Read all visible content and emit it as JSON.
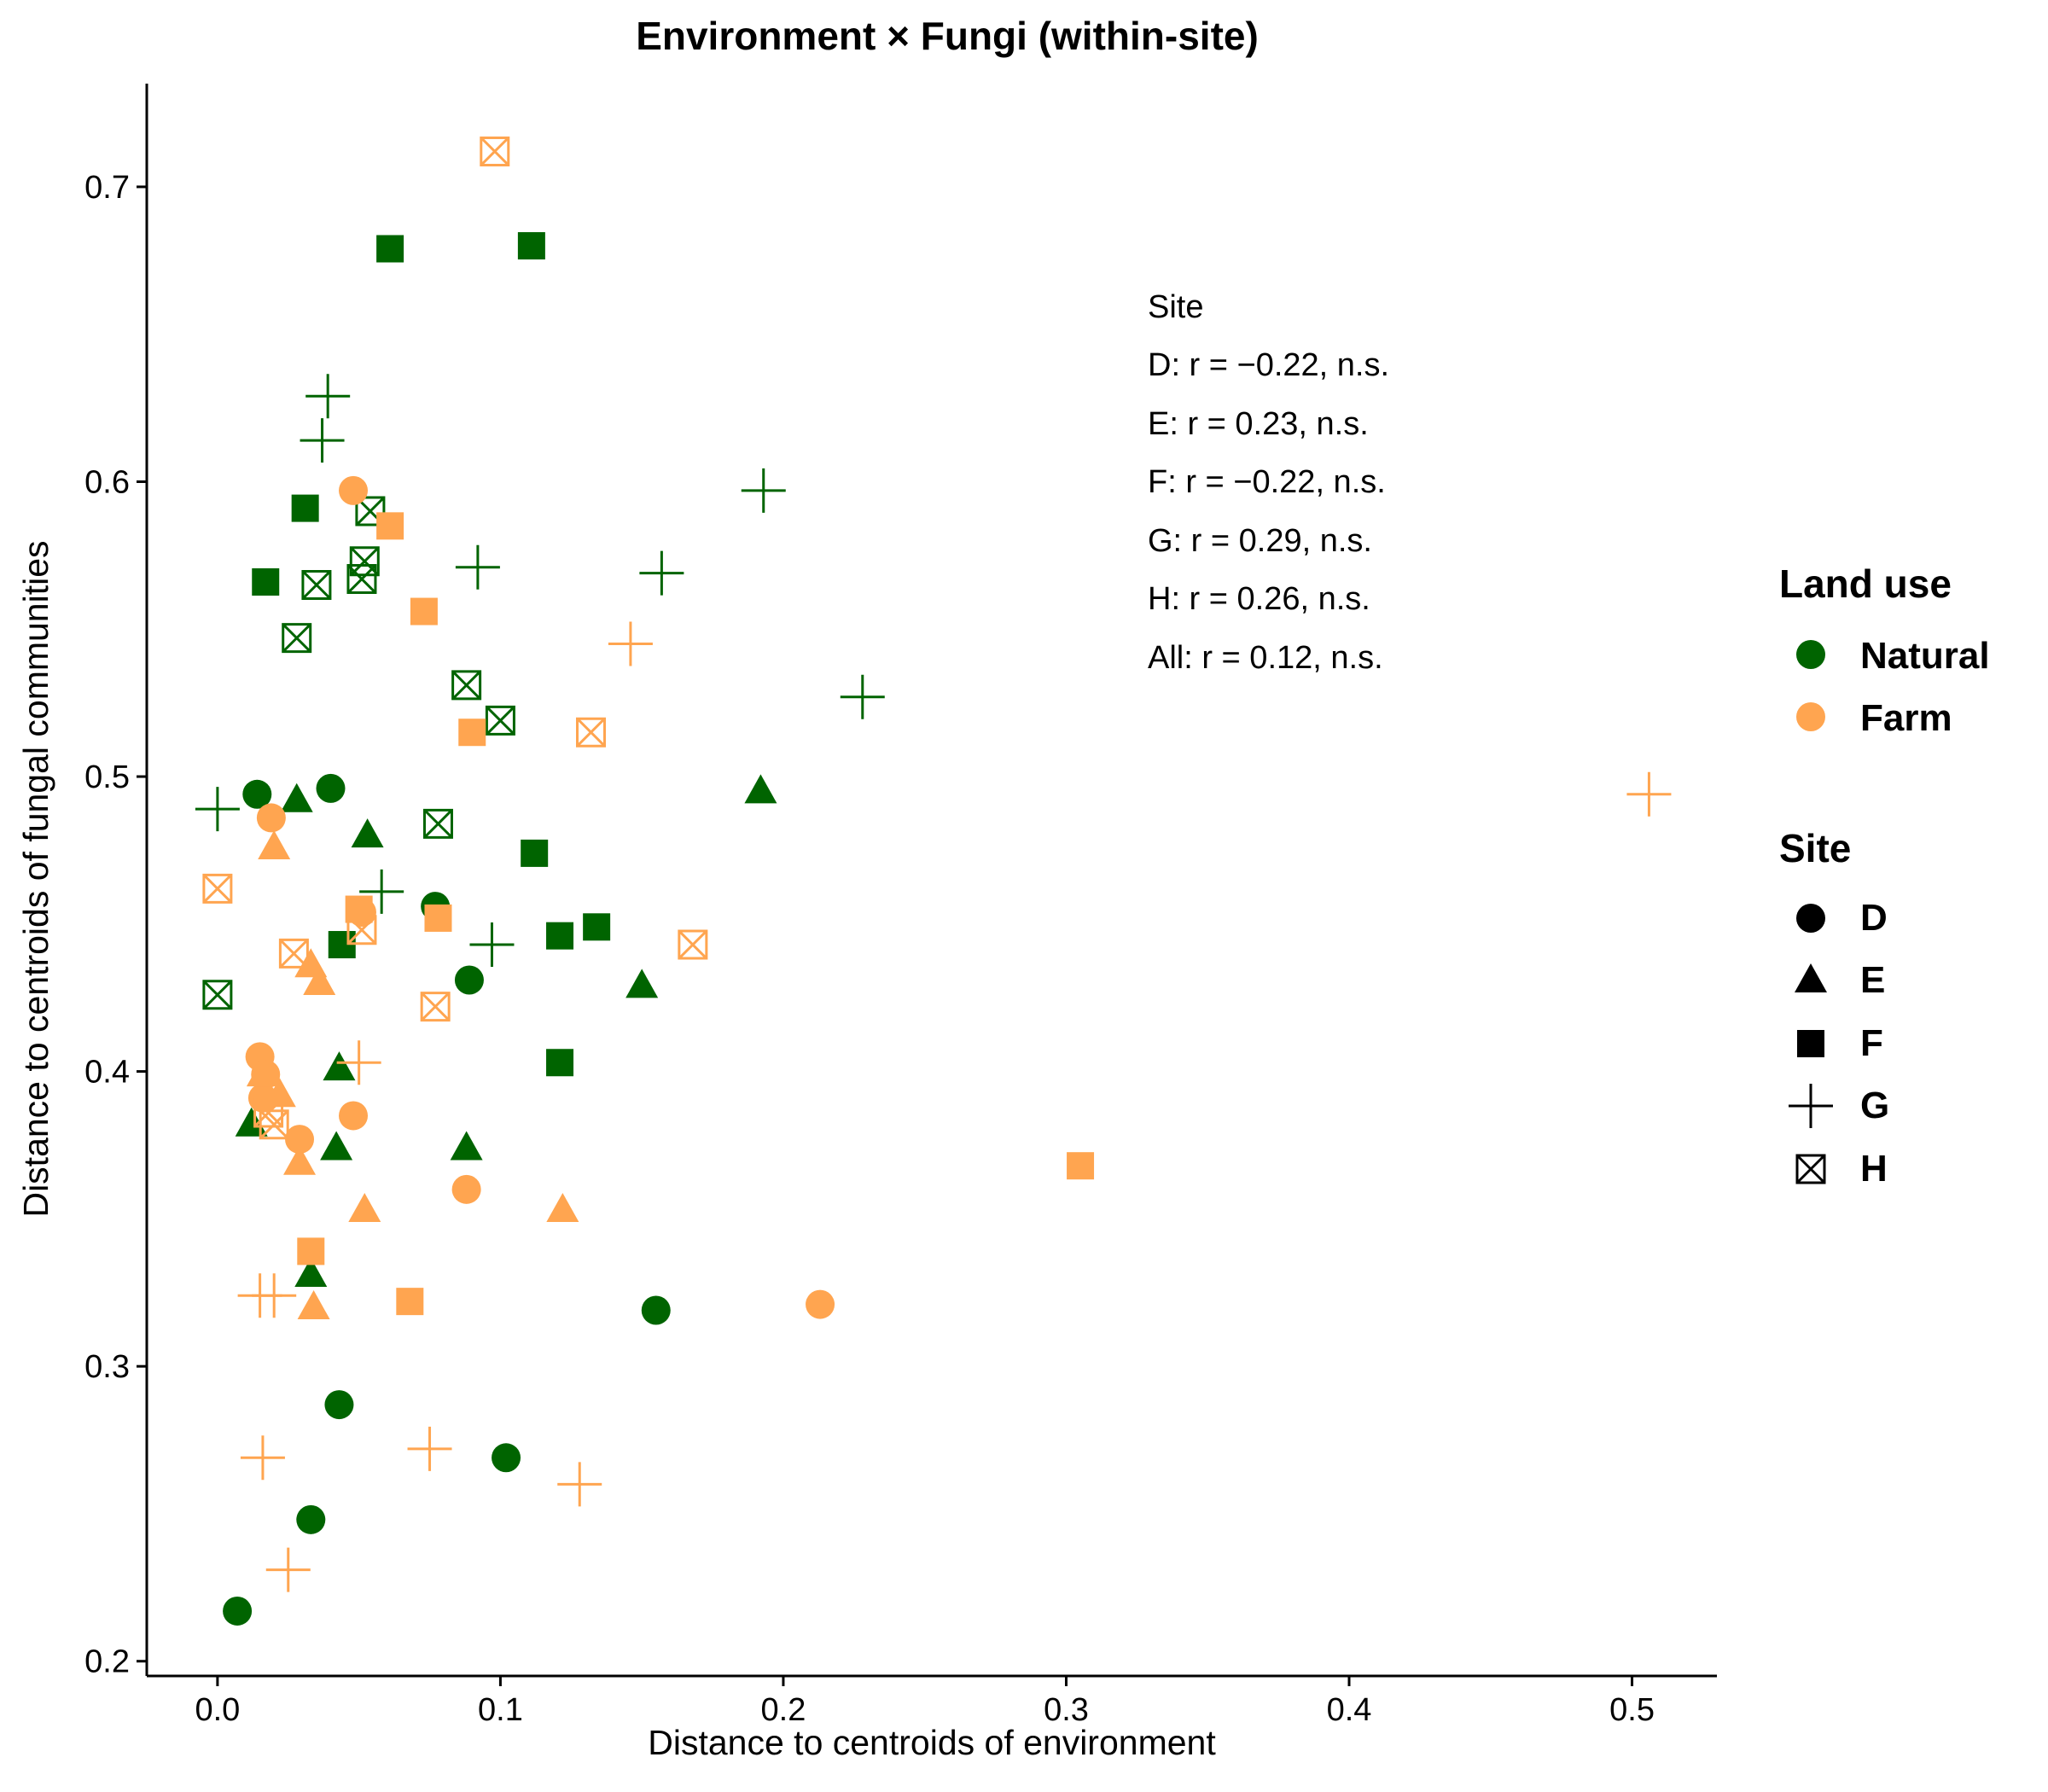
{
  "chart_data": {
    "type": "scatter",
    "title": "Environment × Fungi (within-site)",
    "xlabel": "Distance to centroids of environment",
    "ylabel": "Distance to centroids of fungal communities",
    "xlim": [
      -0.025,
      0.53
    ],
    "ylim": [
      0.195,
      0.735
    ],
    "xticks": [
      0.0,
      0.1,
      0.2,
      0.3,
      0.4,
      0.5
    ],
    "xtick_labels": [
      "0.0",
      "0.1",
      "0.2",
      "0.3",
      "0.4",
      "0.5"
    ],
    "yticks": [
      0.2,
      0.3,
      0.4,
      0.5,
      0.6,
      0.7
    ],
    "ytick_labels": [
      "0.2",
      "0.3",
      "0.4",
      "0.5",
      "0.6",
      "0.7"
    ],
    "grid": false,
    "legend_position": "right",
    "colors": {
      "Natural": "#006400",
      "Farm": "#FFA550"
    },
    "annotation": {
      "title": "Site",
      "lines": [
        "D: r = −0.22, n.s.",
        "E: r = 0.23, n.s.",
        "F: r = −0.22, n.s.",
        "G: r = 0.29, n.s.",
        "H: r = 0.26, n.s.",
        "All: r = 0.12, n.s."
      ]
    },
    "legend_land_use": {
      "title": "Land use",
      "items": [
        "Natural",
        "Farm"
      ]
    },
    "legend_site": {
      "title": "Site",
      "items": [
        "D",
        "E",
        "F",
        "G",
        "H"
      ],
      "shapes": [
        "circle",
        "triangle",
        "square",
        "plus",
        "boxx"
      ]
    },
    "series": [
      {
        "landuse": "Natural",
        "site": "D",
        "x": [
          0.014,
          0.04,
          0.077,
          0.089,
          0.155,
          0.043,
          0.102,
          0.033,
          0.007
        ],
        "y": [
          0.494,
          0.496,
          0.456,
          0.431,
          0.319,
          0.287,
          0.269,
          0.248,
          0.217
        ]
      },
      {
        "landuse": "Natural",
        "site": "E",
        "x": [
          0.028,
          0.053,
          0.043,
          0.012,
          0.042,
          0.088,
          0.15,
          0.192,
          0.033
        ],
        "y": [
          0.492,
          0.48,
          0.401,
          0.382,
          0.374,
          0.374,
          0.429,
          0.495,
          0.331
        ]
      },
      {
        "landuse": "Natural",
        "site": "F",
        "x": [
          0.061,
          0.111,
          0.031,
          0.017,
          0.112,
          0.044,
          0.121,
          0.134,
          0.121
        ],
        "y": [
          0.679,
          0.68,
          0.591,
          0.566,
          0.474,
          0.443,
          0.446,
          0.449,
          0.403
        ]
      },
      {
        "landuse": "Natural",
        "site": "G",
        "x": [
          0.039,
          0.037,
          0.092,
          0.193,
          0.157,
          0.228,
          0.0,
          0.058,
          0.097
        ],
        "y": [
          0.629,
          0.614,
          0.571,
          0.597,
          0.569,
          0.527,
          0.489,
          0.461,
          0.443
        ]
      },
      {
        "landuse": "Natural",
        "site": "H",
        "x": [
          0.054,
          0.052,
          0.051,
          0.035,
          0.028,
          0.088,
          0.1,
          0.078,
          0.0
        ],
        "y": [
          0.59,
          0.573,
          0.567,
          0.565,
          0.547,
          0.531,
          0.519,
          0.484,
          0.426
        ]
      },
      {
        "landuse": "Farm",
        "site": "D",
        "x": [
          0.048,
          0.019,
          0.051,
          0.015,
          0.017,
          0.016,
          0.029,
          0.048,
          0.088,
          0.213
        ],
        "y": [
          0.597,
          0.486,
          0.454,
          0.405,
          0.399,
          0.391,
          0.377,
          0.385,
          0.36,
          0.321
        ]
      },
      {
        "landuse": "Farm",
        "site": "E",
        "x": [
          0.02,
          0.033,
          0.036,
          0.016,
          0.022,
          0.029,
          0.052,
          0.122,
          0.034
        ],
        "y": [
          0.476,
          0.436,
          0.43,
          0.399,
          0.392,
          0.369,
          0.353,
          0.353,
          0.32
        ]
      },
      {
        "landuse": "Farm",
        "site": "F",
        "x": [
          0.061,
          0.073,
          0.09,
          0.05,
          0.078,
          0.033,
          0.068,
          0.305
        ],
        "y": [
          0.585,
          0.556,
          0.515,
          0.455,
          0.452,
          0.339,
          0.322,
          0.368
        ]
      },
      {
        "landuse": "Farm",
        "site": "G",
        "x": [
          0.146,
          0.506,
          0.05,
          0.015,
          0.02,
          0.016,
          0.075,
          0.128,
          0.025
        ],
        "y": [
          0.545,
          0.494,
          0.403,
          0.324,
          0.324,
          0.269,
          0.272,
          0.26,
          0.231
        ]
      },
      {
        "landuse": "Farm",
        "site": "H",
        "x": [
          0.098,
          0.132,
          0.0,
          0.168,
          0.027,
          0.051,
          0.077,
          0.018,
          0.02
        ],
        "y": [
          0.712,
          0.515,
          0.462,
          0.443,
          0.44,
          0.448,
          0.422,
          0.386,
          0.382
        ]
      }
    ]
  }
}
